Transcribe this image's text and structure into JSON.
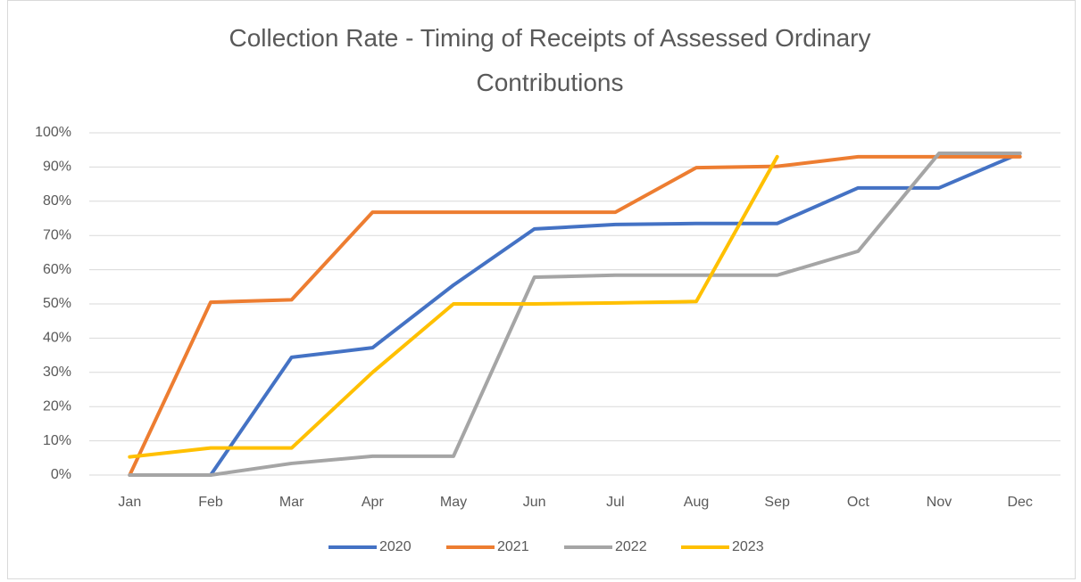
{
  "chart_data": {
    "type": "line",
    "title": "Collection Rate - Timing of Receipts of Assessed Ordinary Contributions",
    "categories": [
      "Jan",
      "Feb",
      "Mar",
      "Apr",
      "May",
      "Jun",
      "Jul",
      "Aug",
      "Sep",
      "Oct",
      "Nov",
      "Dec"
    ],
    "series": [
      {
        "name": "2020",
        "color": "#4472c4",
        "values": [
          0,
          0,
          34.4,
          37.2,
          55.5,
          71.9,
          73.2,
          73.5,
          73.5,
          83.9,
          83.9,
          94
        ]
      },
      {
        "name": "2021",
        "color": "#ed7d31",
        "values": [
          0,
          50.5,
          51.2,
          76.8,
          76.8,
          76.8,
          76.8,
          89.8,
          90.2,
          93,
          93,
          93
        ]
      },
      {
        "name": "2022",
        "color": "#a5a5a5",
        "values": [
          0,
          0,
          3.4,
          5.5,
          5.5,
          57.8,
          58.4,
          58.4,
          58.4,
          65.4,
          94,
          94
        ]
      },
      {
        "name": "2023",
        "color": "#ffc000",
        "values": [
          5.3,
          7.9,
          7.9,
          30,
          50,
          50,
          50.3,
          50.7,
          93,
          null,
          null,
          null
        ]
      }
    ],
    "ylim": [
      0,
      100
    ],
    "yticks": [
      {
        "value": 0,
        "label": "0%"
      },
      {
        "value": 10,
        "label": "10%"
      },
      {
        "value": 20,
        "label": "20%"
      },
      {
        "value": 30,
        "label": "30%"
      },
      {
        "value": 40,
        "label": "40%"
      },
      {
        "value": 50,
        "label": "50%"
      },
      {
        "value": 60,
        "label": "60%"
      },
      {
        "value": 70,
        "label": "70%"
      },
      {
        "value": 80,
        "label": "80%"
      },
      {
        "value": 90,
        "label": "90%"
      },
      {
        "value": 100,
        "label": "100%"
      }
    ],
    "grid": true,
    "legend": "bottom"
  }
}
